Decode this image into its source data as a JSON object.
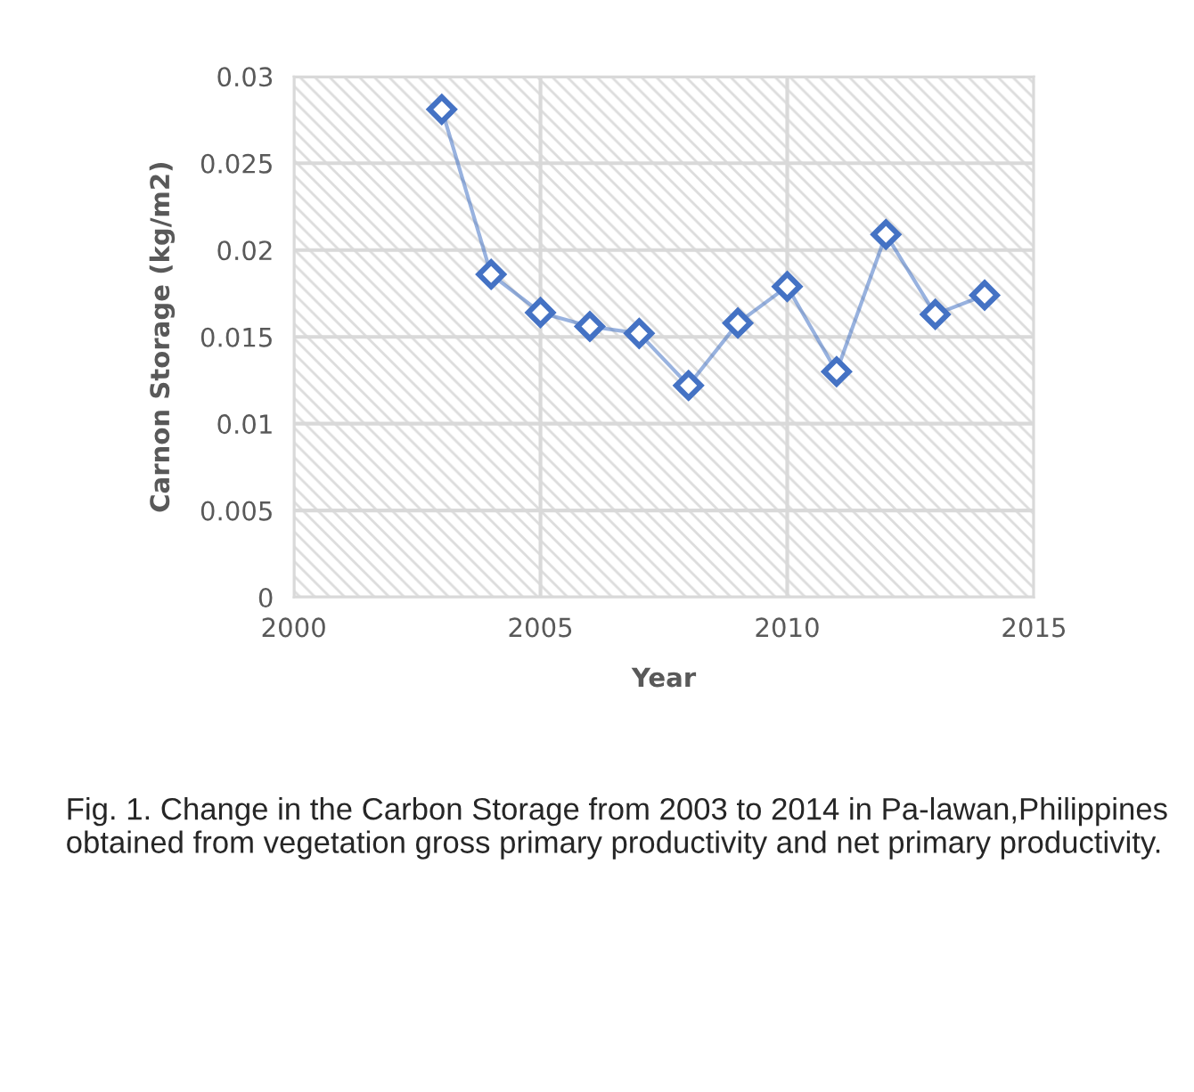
{
  "chart_data": {
    "type": "line",
    "xlabel": "Year",
    "ylabel": "Carnon Storage (kg/m2)",
    "x": [
      2003,
      2004,
      2005,
      2006,
      2007,
      2008,
      2009,
      2010,
      2011,
      2012,
      2013,
      2014
    ],
    "series": [
      {
        "color": "#4472c4",
        "values": [
          0.0281,
          0.0186,
          0.0164,
          0.0156,
          0.0152,
          0.0122,
          0.0158,
          0.0179,
          0.013,
          0.0209,
          0.0163,
          0.0174
        ]
      }
    ],
    "xlim": [
      2000,
      2015
    ],
    "xticks": [
      2000,
      2005,
      2010,
      2015
    ],
    "ylim": [
      0,
      0.03
    ],
    "yticks": [
      0,
      0.005,
      0.01,
      0.015,
      0.02,
      0.025,
      0.03
    ],
    "grid": true,
    "marker": "diamond",
    "line_style": "solid",
    "annotations": [
      "Fig. 1. Change in the Carbon Storage from 2003 to 2014 in Pa-lawan,Philippines obtained from vegetation gross primary productivity and net primary productivity."
    ]
  }
}
